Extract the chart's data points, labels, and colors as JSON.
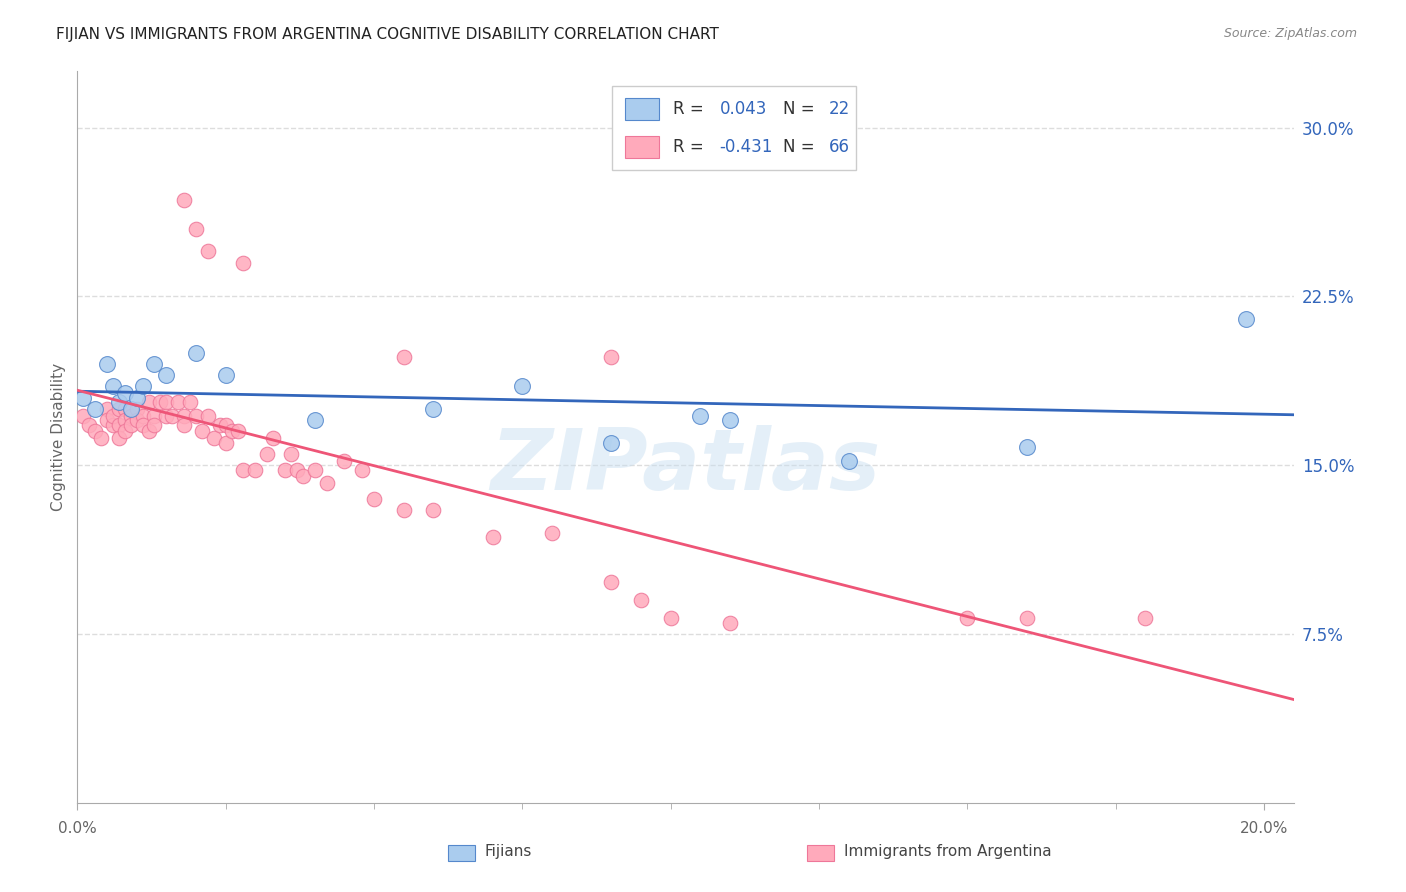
{
  "title": "FIJIAN VS IMMIGRANTS FROM ARGENTINA COGNITIVE DISABILITY CORRELATION CHART",
  "source": "Source: ZipAtlas.com",
  "ylabel": "Cognitive Disability",
  "xlim": [
    0.0,
    0.205
  ],
  "ylim": [
    0.0,
    0.325
  ],
  "xticks_major": [
    0.0,
    0.2
  ],
  "xtick_labels_major": [
    "0.0%",
    "20.0%"
  ],
  "xticks_minor": [
    0.025,
    0.05,
    0.075,
    0.1,
    0.125,
    0.15,
    0.175
  ],
  "yticks_right": [
    0.075,
    0.15,
    0.225,
    0.3
  ],
  "ytick_labels_right": [
    "7.5%",
    "15.0%",
    "22.5%",
    "30.0%"
  ],
  "blue_R": 0.043,
  "blue_N": 22,
  "pink_R": -0.431,
  "pink_N": 66,
  "blue_color": "#aaccee",
  "blue_edge_color": "#5588cc",
  "blue_line_color": "#3366bb",
  "pink_color": "#ffaabb",
  "pink_edge_color": "#ee7799",
  "pink_line_color": "#ee5577",
  "legend_text_color": "#3366bb",
  "watermark": "ZIPatlas",
  "background_color": "#ffffff",
  "grid_color": "#dddddd",
  "blue_x": [
    0.001,
    0.003,
    0.005,
    0.006,
    0.007,
    0.008,
    0.009,
    0.01,
    0.011,
    0.013,
    0.015,
    0.02,
    0.025,
    0.04,
    0.06,
    0.075,
    0.09,
    0.105,
    0.11,
    0.13,
    0.16,
    0.197
  ],
  "blue_y": [
    0.18,
    0.175,
    0.195,
    0.185,
    0.178,
    0.182,
    0.175,
    0.18,
    0.185,
    0.195,
    0.19,
    0.2,
    0.19,
    0.17,
    0.175,
    0.185,
    0.16,
    0.172,
    0.17,
    0.152,
    0.158,
    0.215
  ],
  "pink_x": [
    0.001,
    0.002,
    0.003,
    0.004,
    0.005,
    0.005,
    0.006,
    0.006,
    0.007,
    0.007,
    0.007,
    0.008,
    0.008,
    0.008,
    0.009,
    0.009,
    0.01,
    0.01,
    0.011,
    0.011,
    0.012,
    0.012,
    0.013,
    0.013,
    0.014,
    0.015,
    0.015,
    0.016,
    0.017,
    0.018,
    0.018,
    0.019,
    0.02,
    0.021,
    0.022,
    0.023,
    0.024,
    0.025,
    0.025,
    0.026,
    0.027,
    0.028,
    0.03,
    0.032,
    0.033,
    0.035,
    0.036,
    0.037,
    0.038,
    0.04,
    0.042,
    0.045,
    0.048,
    0.05,
    0.055,
    0.06,
    0.07,
    0.08,
    0.09,
    0.095,
    0.1,
    0.11,
    0.15,
    0.16,
    0.18
  ],
  "pink_y": [
    0.172,
    0.168,
    0.165,
    0.162,
    0.175,
    0.17,
    0.168,
    0.172,
    0.175,
    0.168,
    0.162,
    0.175,
    0.17,
    0.165,
    0.172,
    0.168,
    0.175,
    0.17,
    0.172,
    0.168,
    0.178,
    0.165,
    0.172,
    0.168,
    0.178,
    0.178,
    0.172,
    0.172,
    0.178,
    0.172,
    0.168,
    0.178,
    0.172,
    0.165,
    0.172,
    0.162,
    0.168,
    0.168,
    0.16,
    0.165,
    0.165,
    0.148,
    0.148,
    0.155,
    0.162,
    0.148,
    0.155,
    0.148,
    0.145,
    0.148,
    0.142,
    0.152,
    0.148,
    0.135,
    0.13,
    0.13,
    0.118,
    0.12,
    0.098,
    0.09,
    0.082,
    0.08,
    0.082,
    0.082,
    0.082
  ],
  "pink_outlier_x": [
    0.018,
    0.02,
    0.022,
    0.028,
    0.055,
    0.09
  ],
  "pink_outlier_y": [
    0.268,
    0.255,
    0.245,
    0.24,
    0.198,
    0.198
  ]
}
